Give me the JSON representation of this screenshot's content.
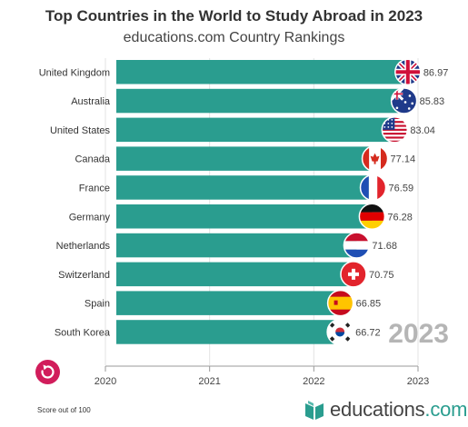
{
  "header": {
    "title": "Top Countries in the World to Study Abroad in 2023",
    "subtitle": "educations.com Country Rankings"
  },
  "chart_data": {
    "type": "bar",
    "orientation": "horizontal",
    "title": "Top Countries in the World to Study Abroad in 2023",
    "subtitle": "educations.com Country Rankings",
    "categories": [
      "United Kingdom",
      "Australia",
      "United States",
      "Canada",
      "France",
      "Germany",
      "Netherlands",
      "Switzerland",
      "Spain",
      "South Korea"
    ],
    "values": [
      86.97,
      85.83,
      83.04,
      77.14,
      76.59,
      76.28,
      71.68,
      70.75,
      66.85,
      66.72
    ],
    "value_labels": [
      "86.97",
      "85.83",
      "83.04",
      "77.14",
      "76.59",
      "76.28",
      "71.68",
      "70.75",
      "66.85",
      "66.72"
    ],
    "flag_icons": [
      "flag-uk-icon",
      "flag-australia-icon",
      "flag-usa-icon",
      "flag-canada-icon",
      "flag-france-icon",
      "flag-germany-icon",
      "flag-netherlands-icon",
      "flag-switzerland-icon",
      "flag-spain-icon",
      "flag-south-korea-icon"
    ],
    "x_ticks": [
      "2020",
      "2021",
      "2022",
      "2023"
    ],
    "x_tick_values": [
      0,
      25,
      50,
      75
    ],
    "xlim": [
      0,
      75
    ],
    "current_label": "2023",
    "bar_color": "#2a9d8f",
    "grid": true
  },
  "controls": {
    "replay_icon": "replay-icon",
    "replay_color": "#d11d5b"
  },
  "footer": {
    "note": "Score out of 100",
    "brand_name": "educations",
    "brand_suffix": ".com",
    "brand_icon": "book-icon"
  }
}
